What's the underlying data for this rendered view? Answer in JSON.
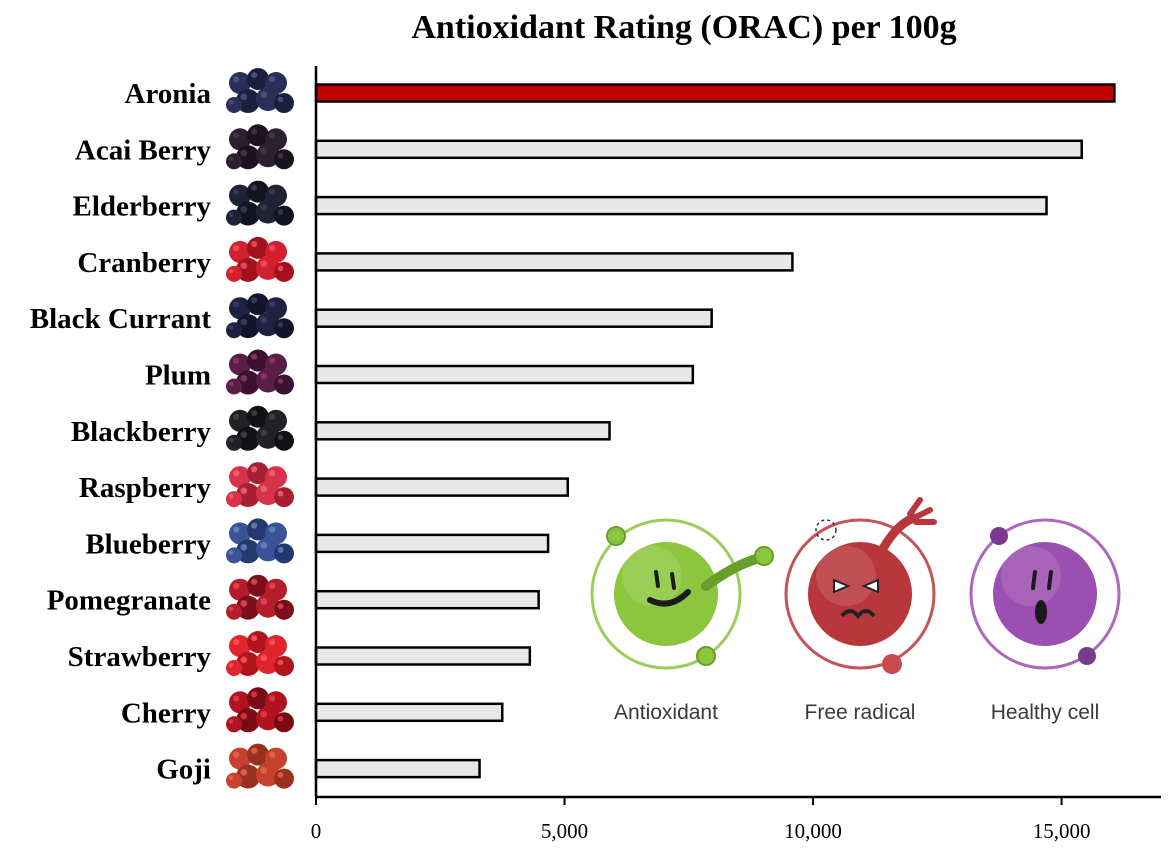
{
  "chart_data": {
    "type": "bar",
    "orientation": "horizontal",
    "title": "Antioxidant Rating (ORAC) per 100g",
    "xlabel": "",
    "ylabel": "",
    "xlim": [
      0,
      17000
    ],
    "grid": false,
    "categories": [
      "Aronia",
      "Acai Berry",
      "Elderberry",
      "Cranberry",
      "Black Currant",
      "Plum",
      "Blackberry",
      "Raspberry",
      "Blueberry",
      "Pomegranate",
      "Strawberry",
      "Cherry",
      "Goji"
    ],
    "values": [
      16062,
      15405,
      14697,
      9584,
      7960,
      7581,
      5905,
      5065,
      4669,
      4479,
      4302,
      3747,
      3290
    ],
    "highlight": "Aronia",
    "ticks": [
      0,
      5000,
      10000,
      15000
    ],
    "tick_labels": [
      "0",
      "5,000",
      "10,000",
      "15,000"
    ],
    "legend": [
      {
        "label": "Antioxidant",
        "color": "#8cc63f"
      },
      {
        "label": "Free radical",
        "color": "#b8373d"
      },
      {
        "label": "Healthy cell",
        "color": "#9b4fb0"
      }
    ]
  },
  "colors": {
    "bar_fill": "#e8e8e8",
    "bar_highlight": "#c00000",
    "bar_stroke": "#000000",
    "axis": "#000000"
  },
  "fruit_icons": [
    "aronia-icon",
    "acai-berry-icon",
    "elderberry-icon",
    "cranberry-icon",
    "black-currant-icon",
    "plum-icon",
    "blackberry-icon",
    "raspberry-icon",
    "blueberry-icon",
    "pomegranate-icon",
    "strawberry-icon",
    "cherry-icon",
    "goji-icon"
  ]
}
